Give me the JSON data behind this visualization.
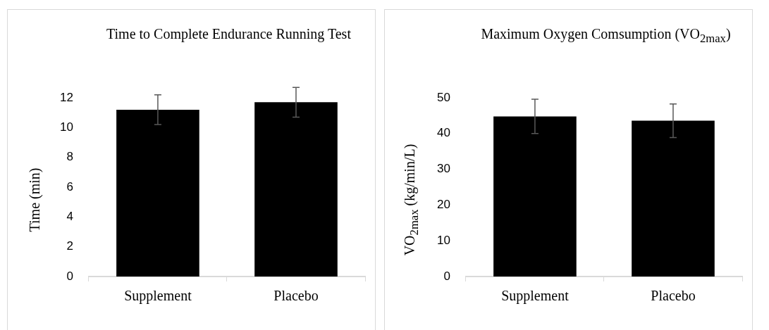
{
  "chart_data": [
    {
      "type": "bar",
      "title": "Time to Complete Endurance Running Test",
      "ylabel": "Time (min)",
      "categories": [
        "Supplement",
        "Placebo"
      ],
      "values": [
        11.2,
        11.7
      ],
      "errors": [
        1.0,
        1.0
      ],
      "colors": [
        "#000000",
        "#000000"
      ],
      "ylim": [
        0,
        12
      ],
      "yticks": [
        0,
        2,
        4,
        6,
        8,
        10,
        12
      ]
    },
    {
      "type": "bar",
      "title": "Maximum Oxygen Comsumption (VO$_{2max}$)",
      "ylabel": "VO$_{2max}$ (kg/min/L)",
      "categories": [
        "Supplement",
        "Placebo"
      ],
      "values": [
        44.8,
        43.6
      ],
      "errors": [
        4.8,
        4.7
      ],
      "colors": [
        "#000000",
        "#000000"
      ],
      "ylim": [
        0,
        50
      ],
      "yticks": [
        0,
        10,
        20,
        30,
        40,
        50
      ]
    }
  ]
}
